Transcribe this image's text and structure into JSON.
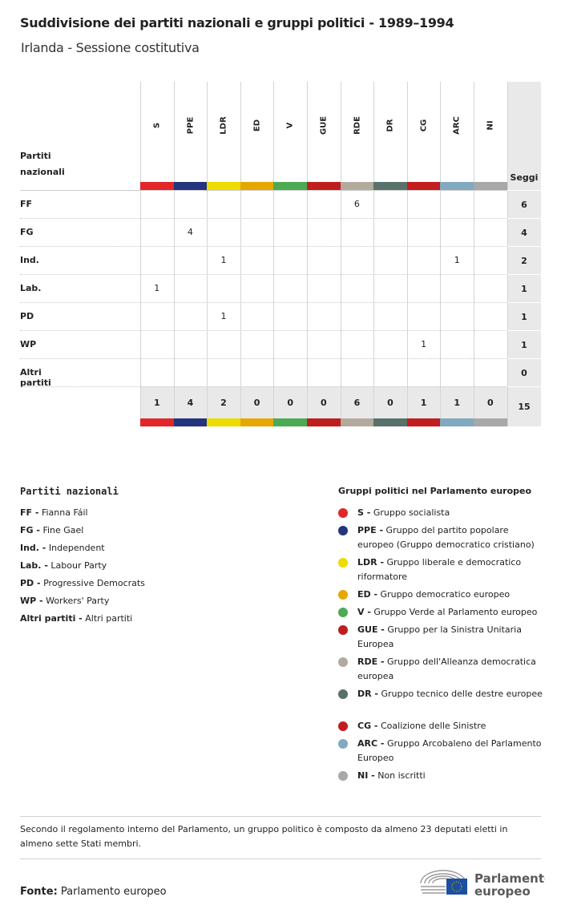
{
  "title": "Suddivisione dei partiti nazionali e gruppi politici - 1989–1994",
  "subtitle": "Irlanda - Sessione costitutiva",
  "table": {
    "row_header": [
      "Partiti",
      "nazionali"
    ],
    "seats_header": "Seggi",
    "groups": [
      {
        "code": "S",
        "color": "#e3262a"
      },
      {
        "code": "PPE",
        "color": "#24347d"
      },
      {
        "code": "LDR",
        "color": "#ecdc00"
      },
      {
        "code": "ED",
        "color": "#e6a700"
      },
      {
        "code": "V",
        "color": "#4caa55"
      },
      {
        "code": "GUE",
        "color": "#bf1e1e"
      },
      {
        "code": "RDE",
        "color": "#b3aa9e"
      },
      {
        "code": "DR",
        "color": "#58716a"
      },
      {
        "code": "CG",
        "color": "#c21d1f"
      },
      {
        "code": "ARC",
        "color": "#81a9c0"
      },
      {
        "code": "NI",
        "color": "#a8a8a8"
      }
    ],
    "rows": [
      {
        "party": "FF",
        "values": [
          "",
          "",
          "",
          "",
          "",
          "",
          "6",
          "",
          "",
          "",
          ""
        ],
        "total": "6"
      },
      {
        "party": "FG",
        "values": [
          "",
          "4",
          "",
          "",
          "",
          "",
          "",
          "",
          "",
          "",
          ""
        ],
        "total": "4"
      },
      {
        "party": "Ind.",
        "values": [
          "",
          "",
          "1",
          "",
          "",
          "",
          "",
          "",
          "",
          "1",
          ""
        ],
        "total": "2"
      },
      {
        "party": "Lab.",
        "values": [
          "1",
          "",
          "",
          "",
          "",
          "",
          "",
          "",
          "",
          "",
          ""
        ],
        "total": "1"
      },
      {
        "party": "PD",
        "values": [
          "",
          "",
          "1",
          "",
          "",
          "",
          "",
          "",
          "",
          "",
          ""
        ],
        "total": "1"
      },
      {
        "party": "WP",
        "values": [
          "",
          "",
          "",
          "",
          "",
          "",
          "",
          "",
          "1",
          "",
          ""
        ],
        "total": "1"
      },
      {
        "party": "Altri partiti",
        "values": [
          "",
          "",
          "",
          "",
          "",
          "",
          "",
          "",
          "",
          "",
          ""
        ],
        "total": "0"
      }
    ],
    "totals": [
      "1",
      "4",
      "2",
      "0",
      "0",
      "0",
      "6",
      "0",
      "1",
      "1",
      "0"
    ],
    "grand_total": "15"
  },
  "legend_parties": {
    "title": "Partiti nazionali",
    "items": [
      {
        "code": "FF -",
        "name": "Fianna Fáil"
      },
      {
        "code": "FG -",
        "name": "Fine Gael"
      },
      {
        "code": "Ind. -",
        "name": "Independent"
      },
      {
        "code": "Lab. -",
        "name": "Labour Party"
      },
      {
        "code": "PD -",
        "name": "Progressive Democrats"
      },
      {
        "code": "WP -",
        "name": "Workers' Party"
      },
      {
        "code": "Altri partiti -",
        "name": "Altri partiti"
      }
    ]
  },
  "legend_groups": {
    "title": "Gruppi politici nel Parlamento europeo",
    "items": [
      {
        "code": "S -",
        "name": "Gruppo socialista"
      },
      {
        "code": "PPE -",
        "name": "Gruppo del partito popolare europeo (Gruppo democratico cristiano)"
      },
      {
        "code": "LDR -",
        "name": "Gruppo liberale e democratico riformatore"
      },
      {
        "code": "ED -",
        "name": "Gruppo democratico europeo"
      },
      {
        "code": "V -",
        "name": "Gruppo Verde al Parlamento europeo"
      },
      {
        "code": "GUE -",
        "name": "Gruppo per la Sinistra Unitaria Europea"
      },
      {
        "code": "RDE -",
        "name": "Gruppo dell'Alleanza democratica europea"
      },
      {
        "code": "DR -",
        "name": "Gruppo tecnico delle destre europee"
      },
      {
        "code": "CG -",
        "name": "Coalizione delle Sinistre"
      },
      {
        "code": "ARC -",
        "name": "Gruppo Arcobaleno del Parlamento Europeo"
      },
      {
        "code": "NI -",
        "name": "Non iscritti"
      }
    ]
  },
  "note": "Secondo il regolamento interno del Parlamento, un gruppo politico è composto da almeno 23 deputati eletti in almeno sette Stati membri.",
  "source_label": "Fonte:",
  "source": "Parlamento europeo",
  "logo_text": [
    "Parlamento",
    "europeo"
  ]
}
